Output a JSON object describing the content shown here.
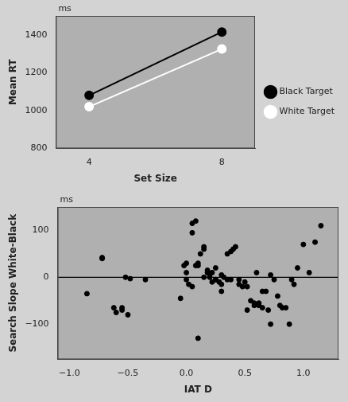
{
  "chart_data": [
    {
      "type": "line",
      "x": [
        4,
        8
      ],
      "series": [
        {
          "name": "Black Target",
          "color": "black",
          "values": [
            1080,
            1415
          ]
        },
        {
          "name": "White Target",
          "color": "white",
          "values": [
            1020,
            1325
          ]
        }
      ],
      "xlabel": "Set Size",
      "ylabel": "Mean RT",
      "annotation": "ms",
      "xlim": [
        3,
        9
      ],
      "xticks": [
        4,
        8
      ],
      "ylim": [
        800,
        1500
      ],
      "yticks": [
        800,
        1000,
        1200,
        1400
      ],
      "marker": "circle",
      "legend": "right",
      "grid": false
    },
    {
      "type": "scatter",
      "x": [
        -0.85,
        -0.72,
        -0.72,
        -0.62,
        -0.55,
        -0.55,
        -0.52,
        -0.48,
        -0.35,
        -0.05,
        -0.02,
        0.0,
        0.0,
        0.02,
        0.05,
        0.05,
        0.08,
        0.08,
        0.1,
        0.1,
        0.12,
        0.15,
        0.15,
        0.18,
        0.18,
        0.2,
        0.2,
        0.22,
        0.22,
        0.25,
        0.25,
        0.28,
        0.3,
        0.3,
        0.32,
        0.35,
        0.35,
        0.38,
        0.4,
        0.42,
        0.45,
        0.48,
        0.5,
        0.52,
        0.55,
        0.58,
        0.6,
        0.62,
        0.62,
        0.65,
        0.68,
        0.7,
        0.72,
        0.75,
        0.78,
        0.8,
        0.82,
        0.85,
        0.88,
        0.9,
        0.92,
        0.95,
        1.0,
        1.05,
        1.1,
        1.15,
        0.0,
        0.05,
        0.1,
        -0.5,
        -0.6,
        0.15,
        0.25,
        0.3,
        0.38,
        0.45,
        0.52,
        0.58,
        0.65,
        0.72
      ],
      "values": [
        -35,
        40,
        42,
        -65,
        -65,
        -70,
        0,
        -3,
        -5,
        -45,
        25,
        10,
        30,
        -15,
        95,
        115,
        25,
        120,
        25,
        30,
        50,
        60,
        65,
        10,
        15,
        0,
        5,
        10,
        -10,
        20,
        -5,
        -10,
        5,
        -15,
        0,
        -5,
        50,
        55,
        60,
        65,
        -15,
        -20,
        -10,
        -20,
        -50,
        -60,
        10,
        -55,
        -60,
        -65,
        -30,
        -70,
        -100,
        -5,
        -40,
        -60,
        -65,
        -65,
        -100,
        -5,
        -15,
        20,
        70,
        10,
        75,
        110,
        -5,
        -20,
        -130,
        -80,
        -75,
        0,
        -5,
        -30,
        -5,
        -5,
        -70,
        -55,
        -30,
        5
      ],
      "color": "black",
      "hline": 0,
      "xlabel": "IAT D",
      "ylabel": "Search Slope White-Black",
      "annotation": "ms",
      "xlim": [
        -1.1,
        1.3
      ],
      "xticks": [
        {
          "value": -1.0,
          "label": "−1.0"
        },
        {
          "value": -0.5,
          "label": "−0.5"
        },
        {
          "value": 0.0,
          "label": "0.0"
        },
        {
          "value": 0.5,
          "label": "0.5"
        },
        {
          "value": 1.0,
          "label": "1.0"
        }
      ],
      "ylim": [
        -175,
        150
      ],
      "yticks": [
        {
          "value": -100,
          "label": "−100"
        },
        {
          "value": 0,
          "label": "0"
        },
        {
          "value": 100,
          "label": "100"
        }
      ],
      "marker": "circle",
      "grid": false
    }
  ]
}
